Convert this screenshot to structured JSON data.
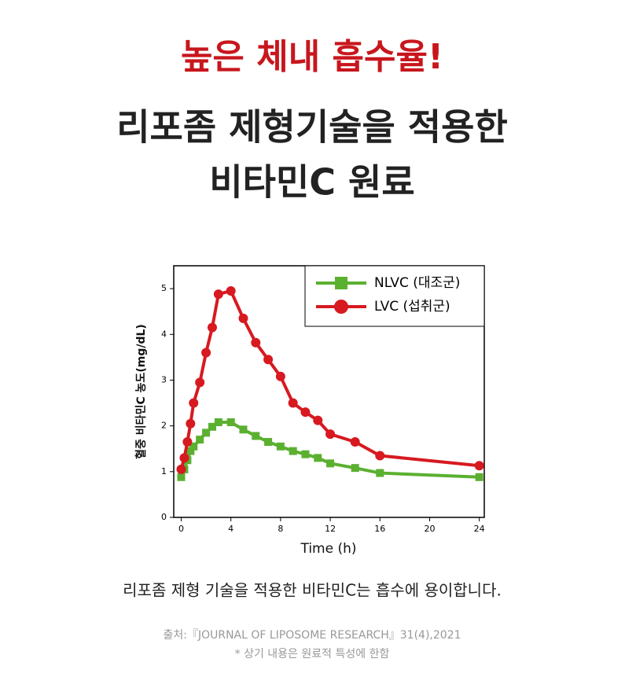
{
  "header": {
    "highlight": "높은 체내 흡수율!",
    "title_lines": [
      "리포좀 제형기술을 적용한",
      "비타민C 원료"
    ]
  },
  "chart_data": {
    "type": "line",
    "x": [
      0,
      0.25,
      0.5,
      0.75,
      1,
      1.5,
      2,
      2.5,
      3,
      4,
      5,
      6,
      7,
      8,
      9,
      10,
      11,
      12,
      14,
      16,
      24
    ],
    "series": [
      {
        "name": "NLVC (대조군)",
        "color": "#5bb030",
        "marker": "square",
        "values": [
          0.88,
          1.05,
          1.25,
          1.45,
          1.55,
          1.7,
          1.85,
          1.98,
          2.08,
          2.08,
          1.92,
          1.78,
          1.65,
          1.55,
          1.45,
          1.38,
          1.3,
          1.18,
          1.08,
          0.97,
          0.88
        ]
      },
      {
        "name": "LVC (섭취군)",
        "color": "#d71920",
        "marker": "circle",
        "values": [
          1.05,
          1.3,
          1.65,
          2.05,
          2.5,
          2.95,
          3.6,
          4.15,
          4.88,
          4.95,
          4.35,
          3.82,
          3.45,
          3.08,
          2.5,
          2.3,
          2.12,
          1.82,
          1.65,
          1.35,
          1.13
        ]
      }
    ],
    "x_label": "Time (h)",
    "y_label": "혈중 비타민C 농도(mg/dL)",
    "xlim": [
      -0.6,
      24.4
    ],
    "xticks": [
      0,
      4,
      8,
      12,
      16,
      20,
      24
    ],
    "ylim": [
      0,
      5.5
    ],
    "yticks": [
      0,
      1,
      2,
      3,
      4,
      5
    ],
    "legend": "upper right"
  },
  "caption": "리포좀 제형 기술을 적용한 비타민C는 흡수에 용이합니다.",
  "source": "출처:『JOURNAL OF LIPOSOME RESEARCH』31(4),2021",
  "note": "* 상기 내용은 원료적 특성에 한함"
}
